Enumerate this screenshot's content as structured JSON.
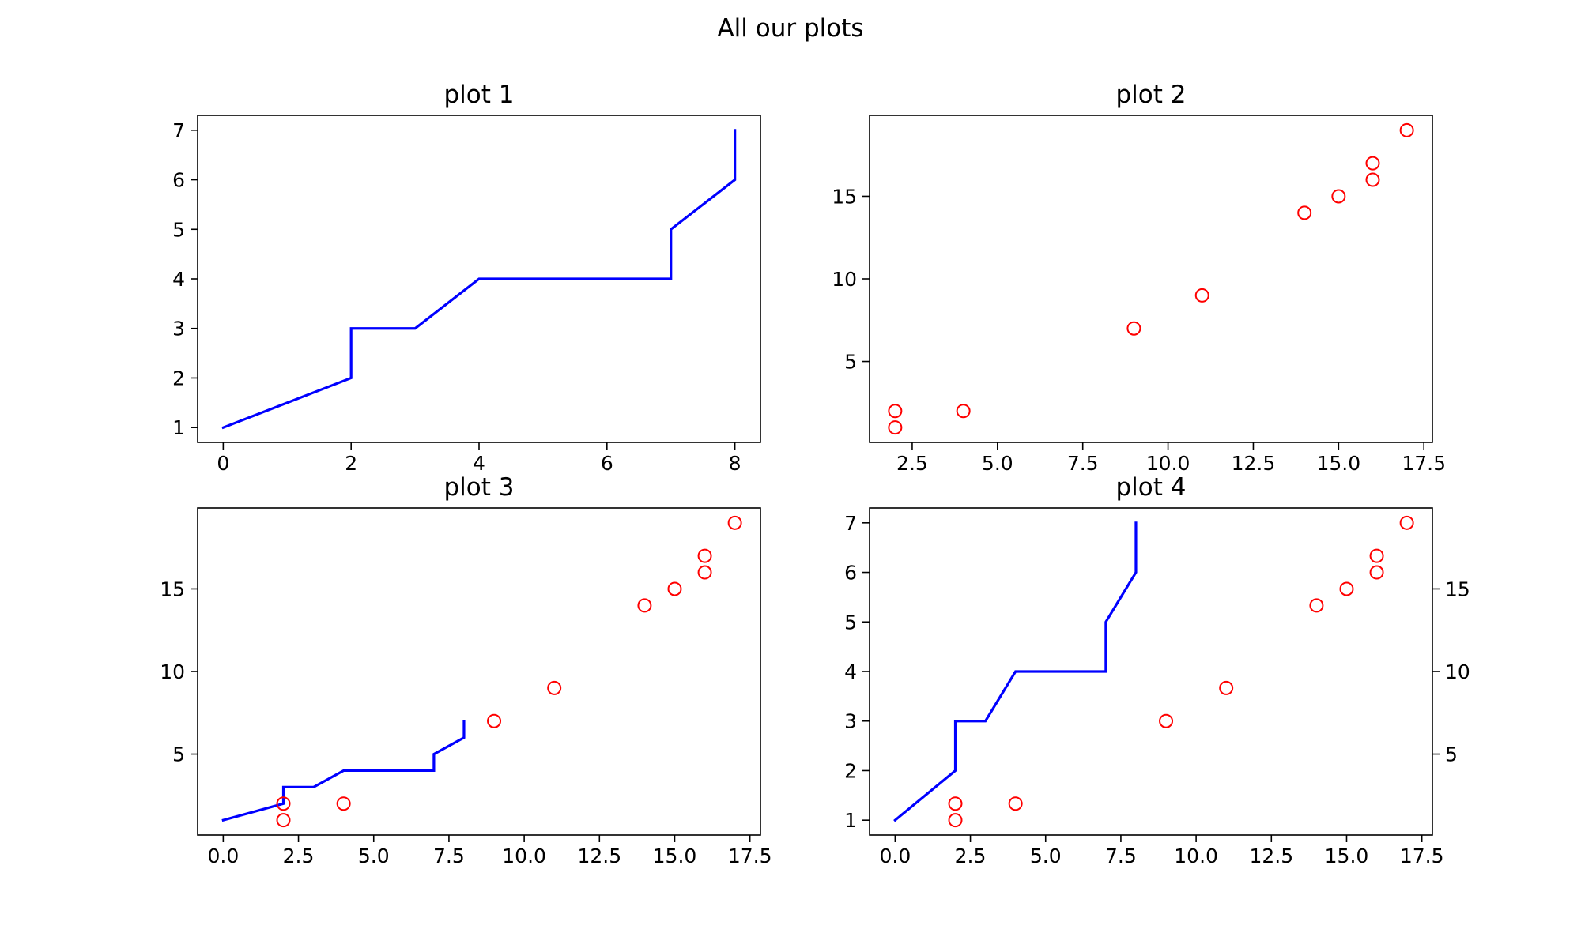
{
  "figure": {
    "suptitle": "All our plots"
  },
  "colors": {
    "line": "#0000ff",
    "marker": "#ff0000",
    "axis": "#000000"
  },
  "chart_data": [
    {
      "id": "plot1",
      "type": "line",
      "title": "plot 1",
      "xlim": [
        -0.4,
        8.4
      ],
      "ylim": [
        0.7,
        7.3
      ],
      "xticks": [
        {
          "v": 0,
          "label": "0"
        },
        {
          "v": 2,
          "label": "2"
        },
        {
          "v": 4,
          "label": "4"
        },
        {
          "v": 6,
          "label": "6"
        },
        {
          "v": 8,
          "label": "8"
        }
      ],
      "yticks": [
        {
          "v": 1,
          "label": "1"
        },
        {
          "v": 2,
          "label": "2"
        },
        {
          "v": 3,
          "label": "3"
        },
        {
          "v": 4,
          "label": "4"
        },
        {
          "v": 5,
          "label": "5"
        },
        {
          "v": 6,
          "label": "6"
        },
        {
          "v": 7,
          "label": "7"
        }
      ],
      "series": [
        {
          "type": "line",
          "color": "#0000ff",
          "x": [
            0,
            2,
            2,
            3,
            4,
            7,
            7,
            8,
            8
          ],
          "y": [
            1,
            2,
            3,
            3,
            4,
            4,
            5,
            6,
            7
          ]
        }
      ]
    },
    {
      "id": "plot2",
      "type": "scatter",
      "title": "plot 2",
      "xlim": [
        1.25,
        17.75
      ],
      "ylim": [
        0.1,
        19.9
      ],
      "xticks": [
        {
          "v": 2.5,
          "label": "2.5"
        },
        {
          "v": 5,
          "label": "5.0"
        },
        {
          "v": 7.5,
          "label": "7.5"
        },
        {
          "v": 10,
          "label": "10.0"
        },
        {
          "v": 12.5,
          "label": "12.5"
        },
        {
          "v": 15,
          "label": "15.0"
        },
        {
          "v": 17.5,
          "label": "17.5"
        }
      ],
      "yticks": [
        {
          "v": 5,
          "label": "5"
        },
        {
          "v": 10,
          "label": "10"
        },
        {
          "v": 15,
          "label": "15"
        }
      ],
      "series": [
        {
          "type": "scatter",
          "color": "#ff0000",
          "x": [
            2,
            2,
            4,
            9,
            11,
            14,
            15,
            16,
            16,
            17
          ],
          "y": [
            1,
            2,
            2,
            7,
            9,
            14,
            15,
            16,
            17,
            19
          ]
        }
      ]
    },
    {
      "id": "plot3",
      "type": "line",
      "title": "plot 3",
      "xlim": [
        -0.85,
        17.85
      ],
      "ylim": [
        0.1,
        19.9
      ],
      "xticks": [
        {
          "v": 0,
          "label": "0.0"
        },
        {
          "v": 2.5,
          "label": "2.5"
        },
        {
          "v": 5,
          "label": "5.0"
        },
        {
          "v": 7.5,
          "label": "7.5"
        },
        {
          "v": 10,
          "label": "10.0"
        },
        {
          "v": 12.5,
          "label": "12.5"
        },
        {
          "v": 15,
          "label": "15.0"
        },
        {
          "v": 17.5,
          "label": "17.5"
        }
      ],
      "yticks": [
        {
          "v": 5,
          "label": "5"
        },
        {
          "v": 10,
          "label": "10"
        },
        {
          "v": 15,
          "label": "15"
        }
      ],
      "series": [
        {
          "type": "line",
          "color": "#0000ff",
          "x": [
            0,
            2,
            2,
            3,
            4,
            7,
            7,
            8,
            8
          ],
          "y": [
            1,
            2,
            3,
            3,
            4,
            4,
            5,
            6,
            7
          ]
        },
        {
          "type": "scatter",
          "color": "#ff0000",
          "x": [
            2,
            2,
            4,
            9,
            11,
            14,
            15,
            16,
            16,
            17
          ],
          "y": [
            1,
            2,
            2,
            7,
            9,
            14,
            15,
            16,
            17,
            19
          ]
        }
      ]
    },
    {
      "id": "plot4",
      "type": "line",
      "title": "plot 4",
      "xlim": [
        -0.85,
        17.85
      ],
      "ylim": [
        0.7,
        7.3
      ],
      "y2lim": [
        0.1,
        19.9
      ],
      "xticks": [
        {
          "v": 0,
          "label": "0.0"
        },
        {
          "v": 2.5,
          "label": "2.5"
        },
        {
          "v": 5,
          "label": "5.0"
        },
        {
          "v": 7.5,
          "label": "7.5"
        },
        {
          "v": 10,
          "label": "10.0"
        },
        {
          "v": 12.5,
          "label": "12.5"
        },
        {
          "v": 15,
          "label": "15.0"
        },
        {
          "v": 17.5,
          "label": "17.5"
        }
      ],
      "yticks": [
        {
          "v": 1,
          "label": "1"
        },
        {
          "v": 2,
          "label": "2"
        },
        {
          "v": 3,
          "label": "3"
        },
        {
          "v": 4,
          "label": "4"
        },
        {
          "v": 5,
          "label": "5"
        },
        {
          "v": 6,
          "label": "6"
        },
        {
          "v": 7,
          "label": "7"
        }
      ],
      "y2ticks": [
        {
          "v": 5,
          "label": "5"
        },
        {
          "v": 10,
          "label": "10"
        },
        {
          "v": 15,
          "label": "15"
        }
      ],
      "series": [
        {
          "type": "line",
          "color": "#0000ff",
          "axis": "left",
          "x": [
            0,
            2,
            2,
            3,
            4,
            7,
            7,
            8,
            8
          ],
          "y": [
            1,
            2,
            3,
            3,
            4,
            4,
            5,
            6,
            7
          ]
        },
        {
          "type": "scatter",
          "color": "#ff0000",
          "axis": "right",
          "x": [
            2,
            2,
            4,
            9,
            11,
            14,
            15,
            16,
            16,
            17
          ],
          "y": [
            1,
            2,
            2,
            7,
            9,
            14,
            15,
            16,
            17,
            19
          ]
        }
      ]
    }
  ]
}
